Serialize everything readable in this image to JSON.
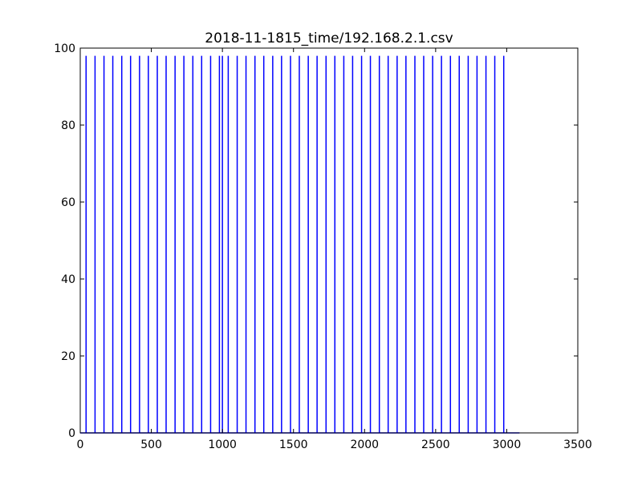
{
  "chart_data": {
    "type": "line",
    "title": "2018-11-1815_time/192.168.2.1.csv",
    "xlabel": "",
    "ylabel": "",
    "xlim": [
      0,
      3500
    ],
    "ylim": [
      0,
      100
    ],
    "grid": false,
    "x_ticks": [
      "0",
      "500",
      "1000",
      "1500",
      "2000",
      "2500",
      "3000",
      "3500"
    ],
    "y_ticks": [
      "0",
      "20",
      "40",
      "60",
      "80",
      "100"
    ],
    "series": [
      {
        "name": "",
        "color": "#0000ff",
        "spike_value": 98,
        "baseline_value": 0,
        "x_start": 0,
        "x_end": 3090,
        "spike_x": [
          41,
          104,
          167,
          229,
          292,
          354,
          417,
          479,
          542,
          604,
          667,
          729,
          792,
          854,
          917,
          979,
          1000,
          1041,
          1104,
          1166,
          1229,
          1291,
          1354,
          1416,
          1479,
          1541,
          1604,
          1666,
          1729,
          1791,
          1854,
          1916,
          1979,
          2041,
          2104,
          2166,
          2229,
          2291,
          2354,
          2416,
          2479,
          2541,
          2604,
          2666,
          2729,
          2791,
          2854,
          2916,
          2979
        ]
      }
    ]
  }
}
